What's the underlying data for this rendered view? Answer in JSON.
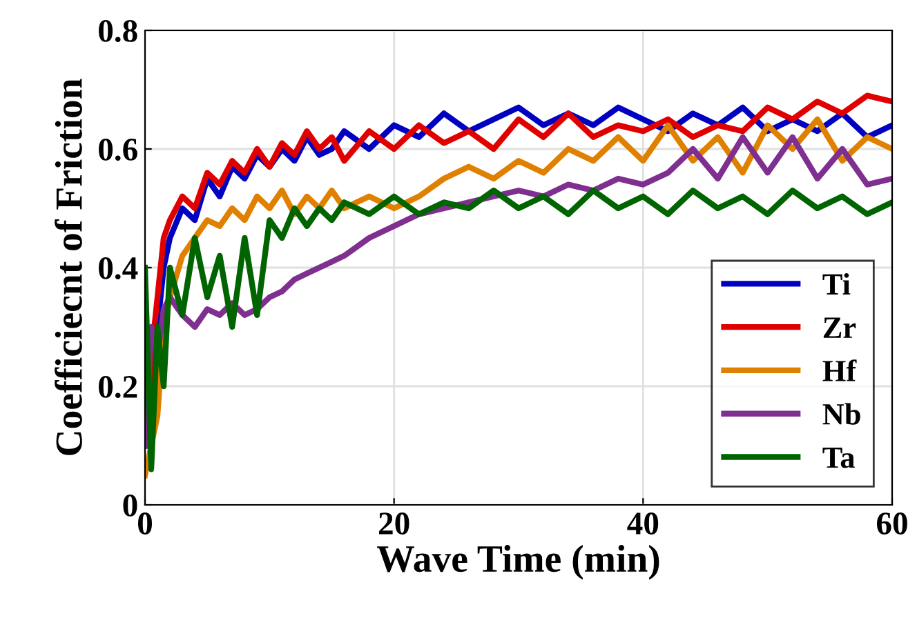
{
  "chart_data": {
    "type": "line",
    "xlabel": "Wave Time (min)",
    "ylabel": "Coefficiecnt of Friction",
    "x": [
      0,
      0.5,
      1,
      1.5,
      2,
      3,
      4,
      5,
      6,
      7,
      8,
      9,
      10,
      11,
      12,
      13,
      14,
      15,
      16,
      18,
      20,
      22,
      24,
      26,
      28,
      30,
      32,
      34,
      36,
      38,
      40,
      42,
      44,
      46,
      48,
      50,
      52,
      54,
      56,
      58,
      60
    ],
    "series": [
      {
        "name": "Ti",
        "color": "#0000c0",
        "values": [
          0.1,
          0.2,
          0.3,
          0.4,
          0.45,
          0.5,
          0.48,
          0.55,
          0.52,
          0.57,
          0.55,
          0.59,
          0.57,
          0.6,
          0.58,
          0.62,
          0.59,
          0.6,
          0.63,
          0.6,
          0.64,
          0.62,
          0.66,
          0.63,
          0.65,
          0.67,
          0.64,
          0.66,
          0.64,
          0.67,
          0.65,
          0.63,
          0.66,
          0.64,
          0.67,
          0.63,
          0.65,
          0.63,
          0.66,
          0.62,
          0.64
        ]
      },
      {
        "name": "Zr",
        "color": "#e00000",
        "values": [
          0.1,
          0.25,
          0.35,
          0.45,
          0.48,
          0.52,
          0.5,
          0.56,
          0.54,
          0.58,
          0.56,
          0.6,
          0.57,
          0.61,
          0.59,
          0.63,
          0.6,
          0.62,
          0.58,
          0.63,
          0.6,
          0.64,
          0.61,
          0.63,
          0.6,
          0.65,
          0.62,
          0.66,
          0.62,
          0.64,
          0.63,
          0.65,
          0.62,
          0.64,
          0.63,
          0.67,
          0.65,
          0.68,
          0.66,
          0.69,
          0.68
        ]
      },
      {
        "name": "Hf",
        "color": "#e08000",
        "values": [
          0.05,
          0.1,
          0.15,
          0.3,
          0.35,
          0.42,
          0.45,
          0.48,
          0.47,
          0.5,
          0.48,
          0.52,
          0.5,
          0.53,
          0.49,
          0.52,
          0.5,
          0.53,
          0.5,
          0.52,
          0.5,
          0.52,
          0.55,
          0.57,
          0.55,
          0.58,
          0.56,
          0.6,
          0.58,
          0.62,
          0.58,
          0.64,
          0.58,
          0.62,
          0.56,
          0.64,
          0.6,
          0.65,
          0.58,
          0.62,
          0.6
        ]
      },
      {
        "name": "Nb",
        "color": "#7f2f8f",
        "values": [
          0.1,
          0.3,
          0.25,
          0.33,
          0.35,
          0.32,
          0.3,
          0.33,
          0.32,
          0.34,
          0.32,
          0.33,
          0.35,
          0.36,
          0.38,
          0.39,
          0.4,
          0.41,
          0.42,
          0.45,
          0.47,
          0.49,
          0.5,
          0.51,
          0.52,
          0.53,
          0.52,
          0.54,
          0.53,
          0.55,
          0.54,
          0.56,
          0.6,
          0.55,
          0.62,
          0.56,
          0.62,
          0.55,
          0.6,
          0.54,
          0.55
        ]
      },
      {
        "name": "Ta",
        "color": "#006400",
        "values": [
          0.4,
          0.06,
          0.3,
          0.2,
          0.4,
          0.32,
          0.45,
          0.35,
          0.42,
          0.3,
          0.45,
          0.32,
          0.48,
          0.45,
          0.5,
          0.47,
          0.5,
          0.48,
          0.51,
          0.49,
          0.52,
          0.49,
          0.51,
          0.5,
          0.53,
          0.5,
          0.52,
          0.49,
          0.53,
          0.5,
          0.52,
          0.49,
          0.53,
          0.5,
          0.52,
          0.49,
          0.53,
          0.5,
          0.52,
          0.49,
          0.51
        ]
      }
    ],
    "xlim": [
      0,
      60
    ],
    "xticks": [
      0,
      20,
      40,
      60
    ],
    "ylim": [
      0,
      0.8
    ],
    "yticks": [
      0,
      0.2,
      0.4,
      0.6,
      0.8
    ],
    "grid": true,
    "legend": "lower right",
    "line_style": "solid",
    "marker": "none"
  }
}
